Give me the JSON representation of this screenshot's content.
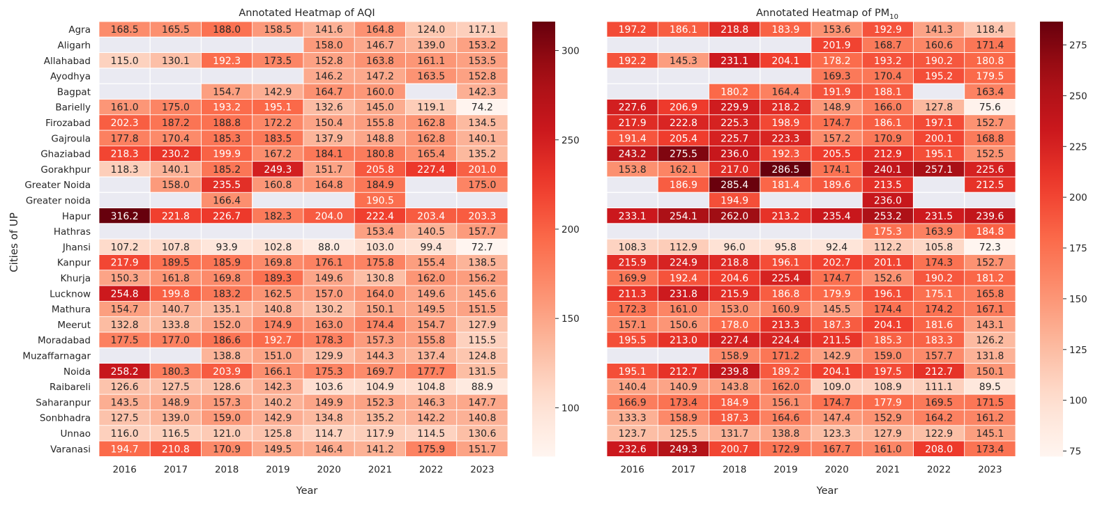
{
  "shared": {
    "ylabel": "Cities of UP",
    "xlabel": "Year",
    "years": [
      "2016",
      "2017",
      "2018",
      "2019",
      "2020",
      "2021",
      "2022",
      "2023"
    ],
    "cities": [
      "Agra",
      "Aligarh",
      "Allahabad",
      "Ayodhya",
      "Bagpat",
      "Barielly",
      "Firozabad",
      "Gajroula",
      "Ghaziabad",
      "Gorakhpur",
      "Greater Noida",
      "Greater noida",
      "Hapur",
      "Hathras",
      "Jhansi",
      "Kanpur",
      "Khurja",
      "Lucknow",
      "Mathura",
      "Meerut",
      "Moradabad",
      "Muzaffarnagar",
      "Noida",
      "Raibareli",
      "Saharanpur",
      "Sonbhadra",
      "Unnao",
      "Varanasi"
    ],
    "missing_color": "#eaeaf2"
  },
  "chart_data": [
    {
      "type": "heatmap",
      "title": "Annotated Heatmap of AQI",
      "xlabel": "Year",
      "ylabel": "Cities of UP",
      "colormap": "Reds",
      "vmin": 72.7,
      "vmax": 316.2,
      "colorbar_ticks": [
        100,
        150,
        200,
        250,
        300
      ],
      "values": [
        [
          168.5,
          165.5,
          188.0,
          158.5,
          141.6,
          164.8,
          124.0,
          117.1
        ],
        [
          null,
          null,
          null,
          null,
          158.0,
          146.7,
          139.0,
          153.2
        ],
        [
          115.0,
          130.1,
          192.3,
          173.5,
          152.8,
          163.8,
          161.1,
          153.5
        ],
        [
          null,
          null,
          null,
          null,
          146.2,
          147.2,
          163.5,
          152.8
        ],
        [
          null,
          null,
          154.7,
          142.9,
          164.7,
          160.0,
          null,
          142.3
        ],
        [
          161.0,
          175.0,
          193.2,
          195.1,
          132.6,
          145.0,
          119.1,
          74.2
        ],
        [
          202.3,
          187.2,
          188.8,
          172.2,
          150.4,
          155.8,
          162.8,
          134.5
        ],
        [
          177.8,
          170.4,
          185.3,
          183.5,
          137.9,
          148.8,
          162.8,
          140.1
        ],
        [
          218.3,
          230.2,
          199.9,
          167.2,
          184.1,
          180.8,
          165.4,
          135.2
        ],
        [
          118.3,
          140.1,
          185.2,
          249.3,
          151.7,
          205.8,
          227.4,
          201.0
        ],
        [
          null,
          158.0,
          235.5,
          160.8,
          164.8,
          184.9,
          null,
          175.0
        ],
        [
          null,
          null,
          166.4,
          null,
          null,
          190.5,
          null,
          null
        ],
        [
          316.2,
          221.8,
          226.7,
          182.3,
          204.0,
          222.4,
          203.4,
          203.3
        ],
        [
          null,
          null,
          null,
          null,
          null,
          153.4,
          140.5,
          157.7
        ],
        [
          107.2,
          107.8,
          93.9,
          102.8,
          88.0,
          103.0,
          99.4,
          72.7
        ],
        [
          217.9,
          189.5,
          185.9,
          169.8,
          176.1,
          175.8,
          155.4,
          138.5
        ],
        [
          150.3,
          161.8,
          169.8,
          189.3,
          149.6,
          130.8,
          162.0,
          156.2
        ],
        [
          254.8,
          199.8,
          183.2,
          162.5,
          157.0,
          164.0,
          149.6,
          145.6
        ],
        [
          154.7,
          140.7,
          135.1,
          140.8,
          130.2,
          150.1,
          149.5,
          151.5
        ],
        [
          132.8,
          133.8,
          152.0,
          174.9,
          163.0,
          174.4,
          154.7,
          127.9
        ],
        [
          177.5,
          177.0,
          186.6,
          192.7,
          178.3,
          157.3,
          155.8,
          115.5
        ],
        [
          null,
          null,
          138.8,
          151.0,
          129.9,
          144.3,
          137.4,
          124.8
        ],
        [
          258.2,
          180.3,
          203.9,
          166.1,
          175.3,
          169.7,
          177.7,
          131.5
        ],
        [
          126.6,
          127.5,
          128.6,
          142.3,
          103.6,
          104.9,
          104.8,
          88.9
        ],
        [
          143.5,
          148.9,
          157.3,
          140.2,
          149.9,
          152.3,
          146.3,
          147.7
        ],
        [
          127.5,
          139.0,
          159.0,
          142.9,
          134.8,
          135.2,
          142.2,
          140.8
        ],
        [
          116.0,
          116.5,
          121.0,
          125.8,
          114.7,
          117.9,
          114.5,
          130.6
        ],
        [
          194.7,
          210.8,
          170.9,
          149.5,
          146.4,
          141.2,
          175.9,
          151.7
        ]
      ]
    },
    {
      "type": "heatmap",
      "title": "Annotated Heatmap of PM",
      "title_subscript": "10",
      "xlabel": "Year",
      "ylabel": "",
      "colormap": "Reds",
      "vmin": 72.3,
      "vmax": 286.5,
      "colorbar_ticks": [
        75,
        100,
        125,
        150,
        175,
        200,
        225,
        250,
        275
      ],
      "values": [
        [
          197.2,
          186.1,
          218.8,
          183.9,
          153.6,
          192.9,
          141.3,
          118.4
        ],
        [
          null,
          null,
          null,
          null,
          201.9,
          168.7,
          160.6,
          171.4
        ],
        [
          192.2,
          145.3,
          231.1,
          204.1,
          178.2,
          193.2,
          190.2,
          180.8
        ],
        [
          null,
          null,
          null,
          null,
          169.3,
          170.4,
          195.2,
          179.5
        ],
        [
          null,
          null,
          180.2,
          164.4,
          191.9,
          188.1,
          null,
          163.4
        ],
        [
          227.6,
          206.9,
          229.9,
          218.2,
          148.9,
          166.0,
          127.8,
          75.6
        ],
        [
          217.9,
          222.8,
          225.3,
          198.9,
          174.7,
          186.1,
          197.1,
          152.7
        ],
        [
          191.4,
          205.4,
          225.7,
          223.3,
          157.2,
          170.9,
          200.1,
          168.8
        ],
        [
          243.2,
          275.5,
          236.0,
          192.3,
          205.5,
          212.9,
          195.1,
          152.5
        ],
        [
          153.8,
          162.1,
          217.0,
          286.5,
          174.1,
          240.1,
          257.1,
          225.6
        ],
        [
          null,
          186.9,
          285.4,
          181.4,
          189.6,
          213.5,
          null,
          212.5
        ],
        [
          null,
          null,
          194.9,
          null,
          null,
          236.0,
          null,
          null
        ],
        [
          233.1,
          254.1,
          262.0,
          213.2,
          235.4,
          253.2,
          231.5,
          239.6
        ],
        [
          null,
          null,
          null,
          null,
          null,
          175.3,
          163.9,
          184.8
        ],
        [
          108.3,
          112.9,
          96.0,
          95.8,
          92.4,
          112.2,
          105.8,
          72.3
        ],
        [
          215.9,
          224.9,
          218.8,
          196.1,
          202.7,
          201.1,
          174.3,
          152.7
        ],
        [
          169.9,
          192.4,
          204.6,
          225.4,
          174.7,
          152.6,
          190.2,
          181.2
        ],
        [
          211.3,
          231.8,
          215.9,
          186.8,
          179.9,
          196.1,
          175.1,
          165.8
        ],
        [
          172.3,
          161.0,
          153.0,
          160.9,
          145.5,
          174.4,
          174.2,
          167.1
        ],
        [
          157.1,
          150.6,
          178.0,
          213.3,
          187.3,
          204.1,
          181.6,
          143.1
        ],
        [
          195.5,
          213.0,
          227.4,
          224.4,
          211.5,
          185.3,
          183.3,
          126.2
        ],
        [
          null,
          null,
          158.9,
          171.2,
          142.9,
          159.0,
          157.7,
          131.8
        ],
        [
          195.1,
          212.7,
          239.8,
          189.2,
          204.1,
          197.5,
          212.7,
          150.1
        ],
        [
          140.4,
          140.9,
          143.8,
          162.0,
          109.0,
          108.9,
          111.1,
          89.5
        ],
        [
          166.9,
          173.4,
          184.9,
          156.1,
          174.7,
          177.9,
          169.5,
          171.5
        ],
        [
          133.3,
          158.9,
          187.3,
          164.6,
          147.4,
          152.9,
          164.2,
          161.2
        ],
        [
          123.7,
          125.5,
          131.7,
          138.8,
          123.3,
          127.9,
          122.9,
          145.1
        ],
        [
          232.6,
          249.3,
          200.7,
          172.9,
          167.7,
          161.0,
          208.0,
          173.4
        ]
      ]
    }
  ]
}
